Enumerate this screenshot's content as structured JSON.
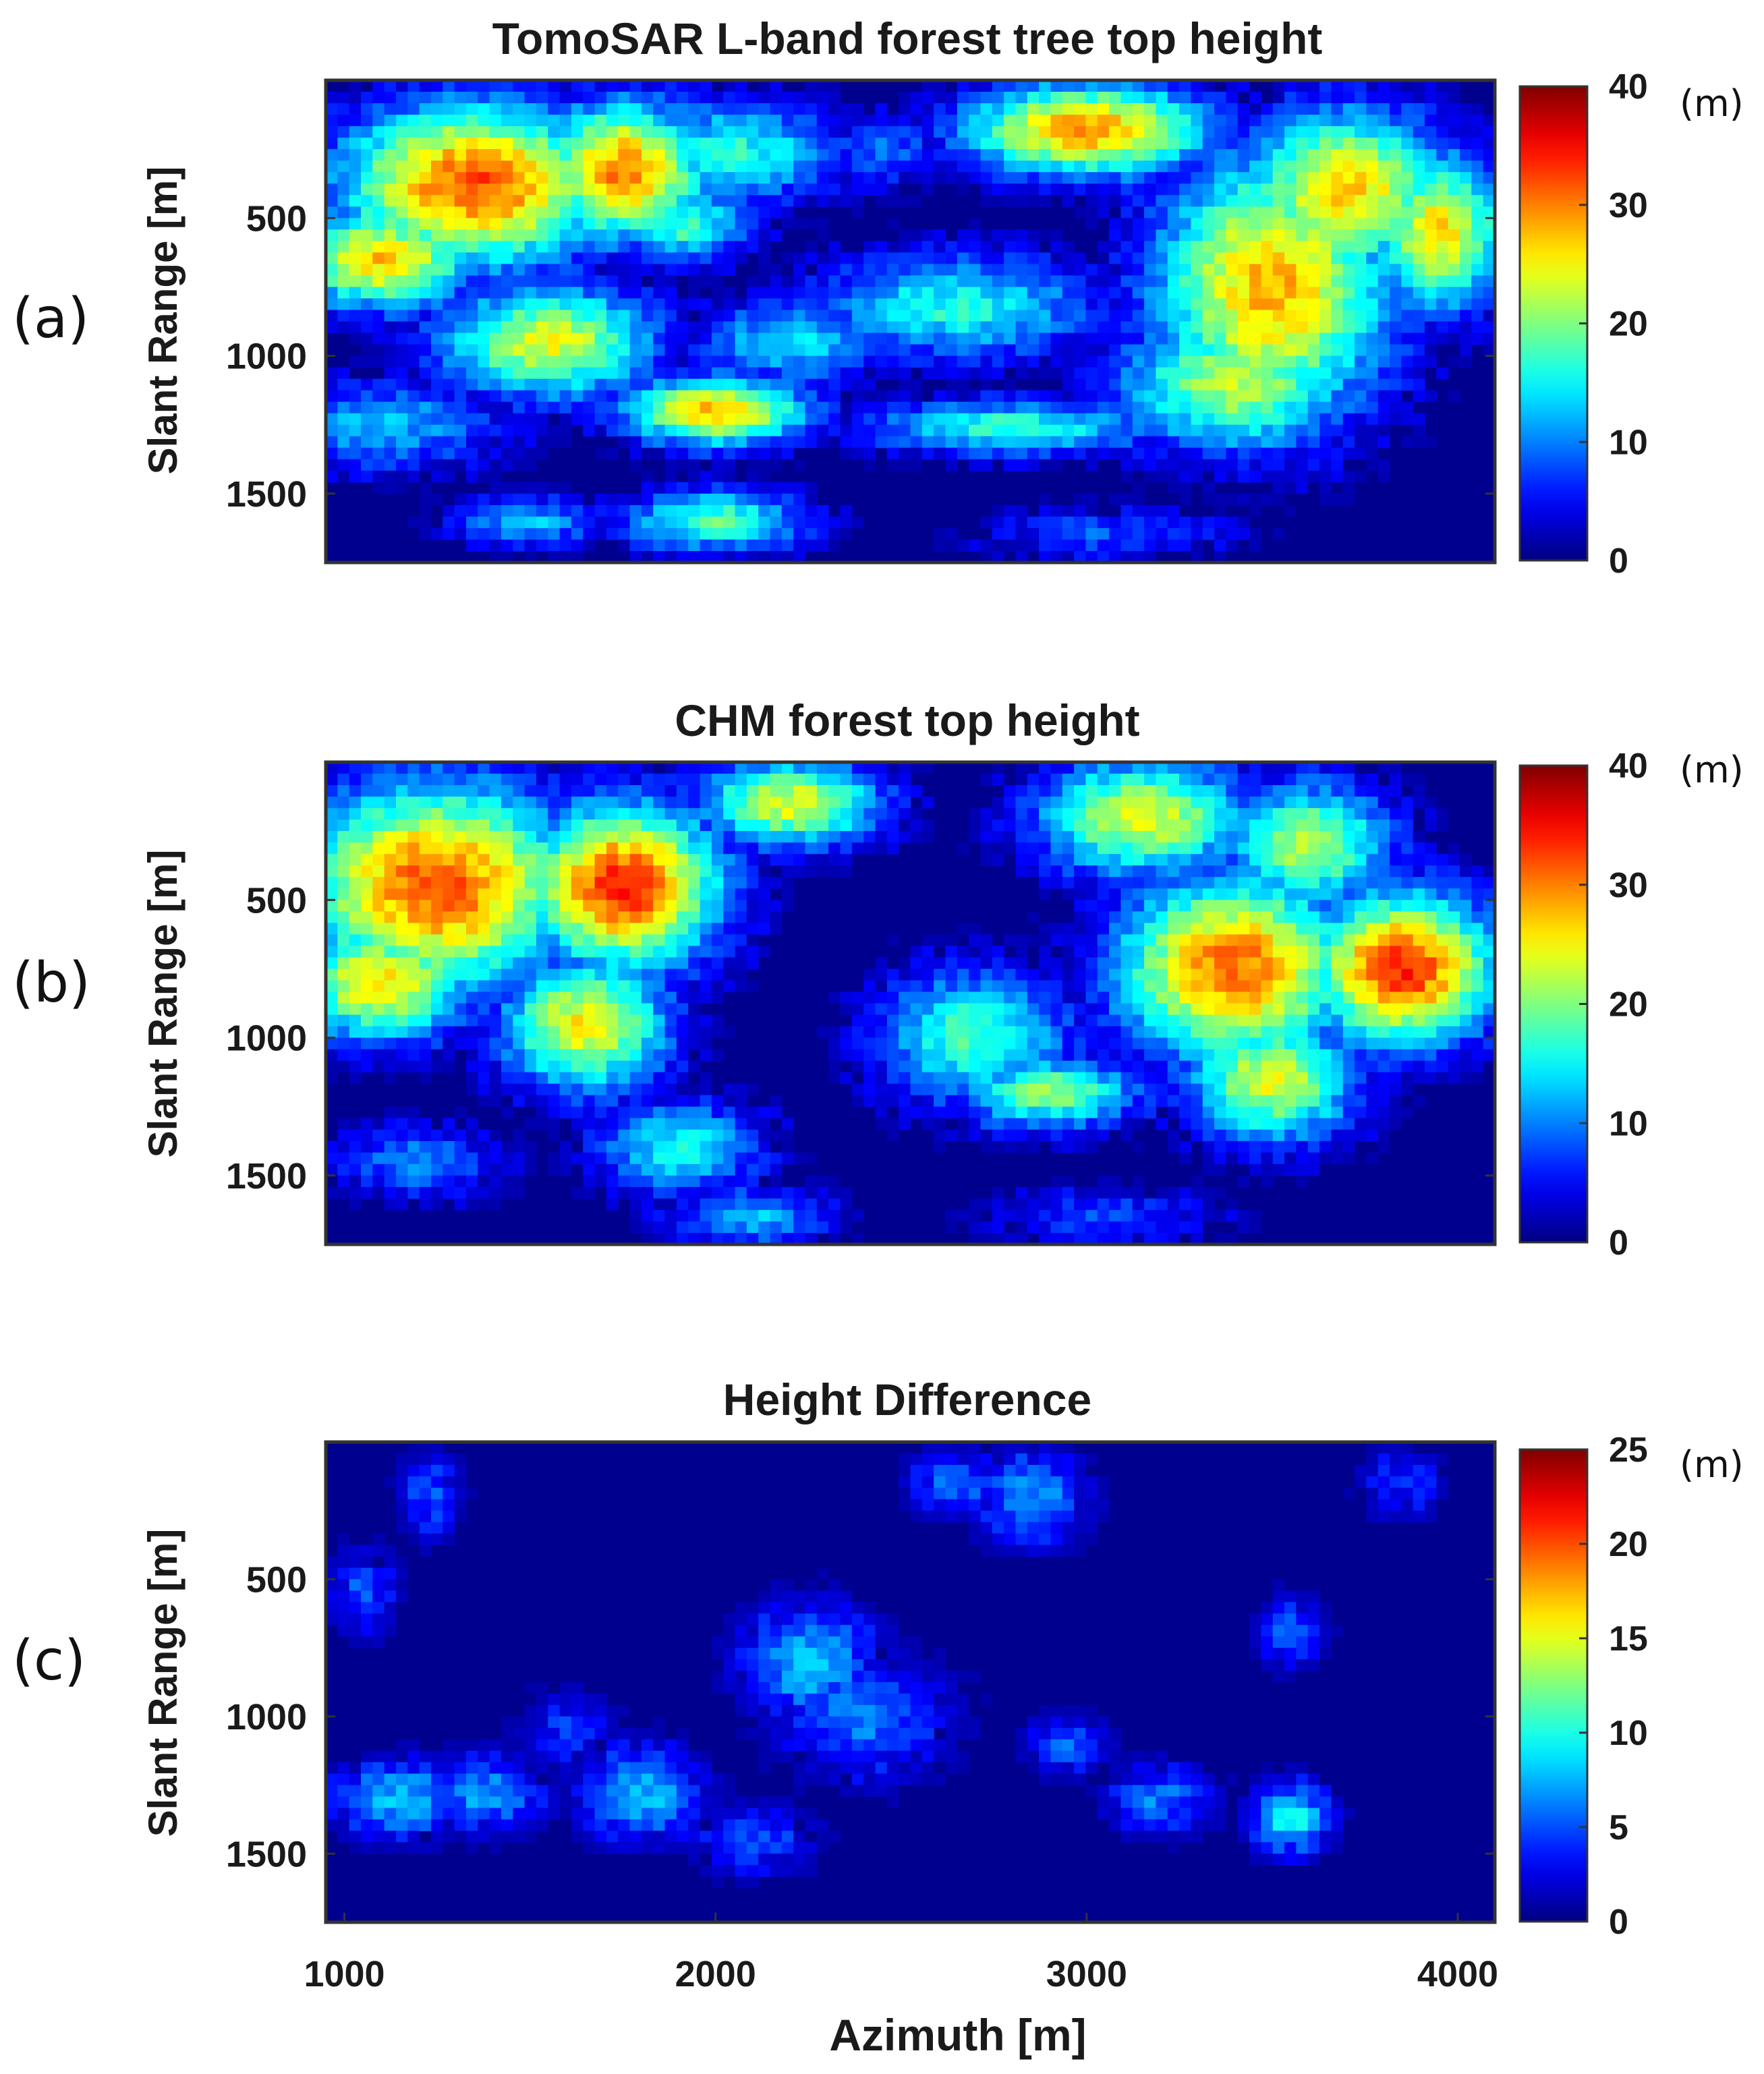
{
  "chart_data": [
    {
      "type": "heatmap",
      "panel_label": "(a)",
      "title": "TomoSAR L-band forest tree top height",
      "xlabel": "Azimuth [m]",
      "ylabel": "Slant Range [m]",
      "xlim": [
        950,
        4100
      ],
      "ylim": [
        0,
        1750
      ],
      "yticks": [
        500,
        1000,
        1500
      ],
      "colorbar": {
        "min": 0,
        "max": 40,
        "ticks": [
          0,
          10,
          20,
          30,
          40
        ],
        "unit": "(m)",
        "colormap": "jet"
      },
      "seed": 11,
      "blobs": [
        {
          "x": 1350,
          "y": 380,
          "sx": 320,
          "sy": 260,
          "h": 32
        },
        {
          "x": 1150,
          "y": 250,
          "sx": 170,
          "sy": 180,
          "h": 6
        },
        {
          "x": 1750,
          "y": 330,
          "sx": 200,
          "sy": 220,
          "h": 30
        },
        {
          "x": 1100,
          "y": 650,
          "sx": 220,
          "sy": 160,
          "h": 27
        },
        {
          "x": 1550,
          "y": 950,
          "sx": 260,
          "sy": 180,
          "h": 24
        },
        {
          "x": 2000,
          "y": 1200,
          "sx": 220,
          "sy": 110,
          "h": 28
        },
        {
          "x": 2200,
          "y": 950,
          "sx": 220,
          "sy": 140,
          "h": 14
        },
        {
          "x": 2650,
          "y": 820,
          "sx": 340,
          "sy": 170,
          "h": 16
        },
        {
          "x": 2800,
          "y": 1260,
          "sx": 350,
          "sy": 90,
          "h": 17
        },
        {
          "x": 2050,
          "y": 260,
          "sx": 260,
          "sy": 170,
          "h": 16
        },
        {
          "x": 1900,
          "y": 520,
          "sx": 170,
          "sy": 120,
          "h": 18
        },
        {
          "x": 3000,
          "y": 180,
          "sx": 290,
          "sy": 150,
          "h": 29
        },
        {
          "x": 3500,
          "y": 750,
          "sx": 280,
          "sy": 420,
          "h": 28
        },
        {
          "x": 3700,
          "y": 400,
          "sx": 240,
          "sy": 260,
          "h": 27
        },
        {
          "x": 3950,
          "y": 550,
          "sx": 160,
          "sy": 250,
          "h": 26
        },
        {
          "x": 3400,
          "y": 1100,
          "sx": 280,
          "sy": 220,
          "h": 22
        },
        {
          "x": 2000,
          "y": 1600,
          "sx": 220,
          "sy": 100,
          "h": 18
        },
        {
          "x": 1500,
          "y": 1600,
          "sx": 200,
          "sy": 80,
          "h": 12
        },
        {
          "x": 1100,
          "y": 1250,
          "sx": 300,
          "sy": 150,
          "h": 12
        },
        {
          "x": 3050,
          "y": 1650,
          "sx": 300,
          "sy": 90,
          "h": 8
        },
        {
          "x": 2450,
          "y": 250,
          "sx": 150,
          "sy": 120,
          "h": 9
        }
      ]
    },
    {
      "type": "heatmap",
      "panel_label": "(b)",
      "title": "CHM forest top height",
      "xlabel": "Azimuth [m]",
      "ylabel": "Slant Range [m]",
      "xlim": [
        950,
        4100
      ],
      "ylim": [
        0,
        1750
      ],
      "yticks": [
        500,
        1000,
        1500
      ],
      "colorbar": {
        "min": 0,
        "max": 40,
        "ticks": [
          0,
          10,
          20,
          30,
          40
        ],
        "unit": "(m)",
        "colormap": "jet"
      },
      "seed": 23,
      "blobs": [
        {
          "x": 1250,
          "y": 450,
          "sx": 330,
          "sy": 330,
          "h": 32
        },
        {
          "x": 1750,
          "y": 450,
          "sx": 230,
          "sy": 260,
          "h": 34
        },
        {
          "x": 1100,
          "y": 800,
          "sx": 210,
          "sy": 190,
          "h": 26
        },
        {
          "x": 1650,
          "y": 950,
          "sx": 200,
          "sy": 220,
          "h": 25
        },
        {
          "x": 2200,
          "y": 150,
          "sx": 220,
          "sy": 140,
          "h": 24
        },
        {
          "x": 1900,
          "y": 1400,
          "sx": 200,
          "sy": 160,
          "h": 15
        },
        {
          "x": 2700,
          "y": 1000,
          "sx": 230,
          "sy": 220,
          "h": 18
        },
        {
          "x": 2900,
          "y": 1200,
          "sx": 220,
          "sy": 120,
          "h": 20
        },
        {
          "x": 3400,
          "y": 750,
          "sx": 280,
          "sy": 300,
          "h": 31
        },
        {
          "x": 3850,
          "y": 750,
          "sx": 220,
          "sy": 240,
          "h": 34
        },
        {
          "x": 3150,
          "y": 200,
          "sx": 250,
          "sy": 190,
          "h": 24
        },
        {
          "x": 3600,
          "y": 300,
          "sx": 200,
          "sy": 200,
          "h": 22
        },
        {
          "x": 3500,
          "y": 1150,
          "sx": 200,
          "sy": 200,
          "h": 24
        },
        {
          "x": 1200,
          "y": 1450,
          "sx": 200,
          "sy": 120,
          "h": 10
        },
        {
          "x": 2100,
          "y": 1650,
          "sx": 200,
          "sy": 100,
          "h": 12
        },
        {
          "x": 3050,
          "y": 1650,
          "sx": 300,
          "sy": 100,
          "h": 7
        }
      ]
    },
    {
      "type": "heatmap",
      "panel_label": "(c)",
      "title": "Height Difference",
      "xlabel": "Azimuth [m]",
      "ylabel": "Slant Range [m]",
      "xlim": [
        950,
        4100
      ],
      "ylim": [
        0,
        1750
      ],
      "xticks": [
        1000,
        2000,
        3000,
        4000
      ],
      "yticks": [
        500,
        1000,
        1500
      ],
      "colorbar": {
        "min": 0,
        "max": 25,
        "ticks": [
          0,
          5,
          10,
          15,
          20,
          25
        ],
        "unit": "(m)",
        "colormap": "jet"
      },
      "seed": 37,
      "blobs": [
        {
          "x": 1150,
          "y": 1300,
          "sx": 160,
          "sy": 120,
          "h": 8
        },
        {
          "x": 1380,
          "y": 1280,
          "sx": 140,
          "sy": 120,
          "h": 7
        },
        {
          "x": 1800,
          "y": 1280,
          "sx": 140,
          "sy": 150,
          "h": 8
        },
        {
          "x": 2250,
          "y": 800,
          "sx": 160,
          "sy": 180,
          "h": 8
        },
        {
          "x": 2400,
          "y": 1000,
          "sx": 200,
          "sy": 200,
          "h": 6
        },
        {
          "x": 2850,
          "y": 200,
          "sx": 130,
          "sy": 150,
          "h": 7
        },
        {
          "x": 2650,
          "y": 150,
          "sx": 110,
          "sy": 100,
          "h": 6
        },
        {
          "x": 3550,
          "y": 1370,
          "sx": 90,
          "sy": 110,
          "h": 10
        },
        {
          "x": 3200,
          "y": 1300,
          "sx": 130,
          "sy": 110,
          "h": 6
        },
        {
          "x": 1050,
          "y": 550,
          "sx": 80,
          "sy": 140,
          "h": 5
        },
        {
          "x": 1230,
          "y": 200,
          "sx": 70,
          "sy": 140,
          "h": 5
        },
        {
          "x": 2950,
          "y": 1100,
          "sx": 100,
          "sy": 100,
          "h": 5
        },
        {
          "x": 1600,
          "y": 1050,
          "sx": 120,
          "sy": 120,
          "h": 4
        },
        {
          "x": 3550,
          "y": 700,
          "sx": 80,
          "sy": 120,
          "h": 5
        },
        {
          "x": 3850,
          "y": 150,
          "sx": 100,
          "sy": 120,
          "h": 4
        },
        {
          "x": 2100,
          "y": 1450,
          "sx": 150,
          "sy": 110,
          "h": 5
        }
      ]
    }
  ]
}
